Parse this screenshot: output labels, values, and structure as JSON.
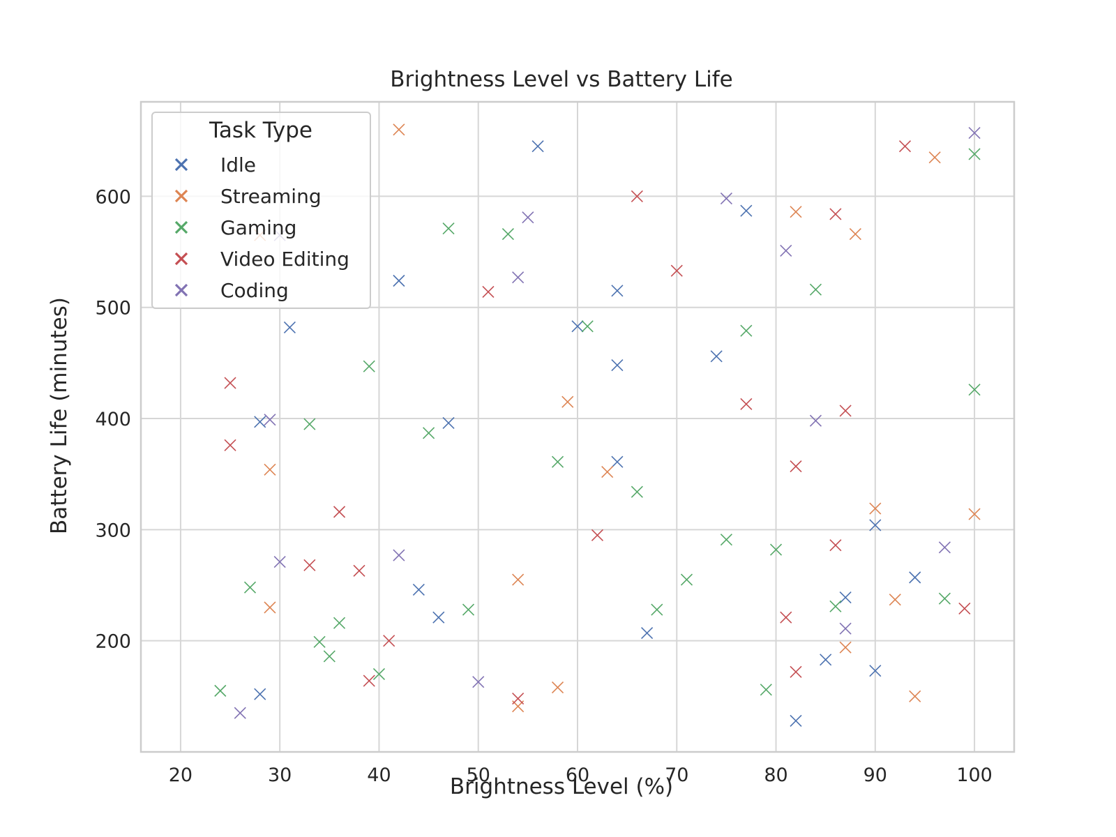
{
  "chart_data": {
    "type": "scatter",
    "title": "Brightness Level vs Battery Life",
    "xlabel": "Brightness Level (%)",
    "ylabel": "Battery Life (minutes)",
    "xlim": [
      16,
      104
    ],
    "ylim": [
      100,
      685
    ],
    "x_ticks": [
      20,
      30,
      40,
      50,
      60,
      70,
      80,
      90,
      100
    ],
    "y_ticks": [
      200,
      300,
      400,
      500,
      600
    ],
    "grid": true,
    "marker": "x",
    "legend": {
      "title": "Task Type",
      "placement": "top-left"
    },
    "series": [
      {
        "name": "Idle",
        "color": "#4c72b0",
        "points": [
          [
            56,
            645
          ],
          [
            77,
            587
          ],
          [
            42,
            524
          ],
          [
            64,
            515
          ],
          [
            31,
            482
          ],
          [
            60,
            483
          ],
          [
            64,
            448
          ],
          [
            74,
            456
          ],
          [
            28,
            397
          ],
          [
            47,
            396
          ],
          [
            64,
            361
          ],
          [
            90,
            304
          ],
          [
            94,
            257
          ],
          [
            87,
            239
          ],
          [
            44,
            246
          ],
          [
            46,
            221
          ],
          [
            67,
            207
          ],
          [
            85,
            183
          ],
          [
            90,
            173
          ],
          [
            28,
            152
          ],
          [
            82,
            128
          ]
        ]
      },
      {
        "name": "Streaming",
        "color": "#dd8452",
        "points": [
          [
            42,
            660
          ],
          [
            96,
            635
          ],
          [
            82,
            586
          ],
          [
            88,
            566
          ],
          [
            28,
            565
          ],
          [
            59,
            415
          ],
          [
            29,
            354
          ],
          [
            63,
            352
          ],
          [
            90,
            319
          ],
          [
            100,
            314
          ],
          [
            54,
            255
          ],
          [
            92,
            237
          ],
          [
            29,
            230
          ],
          [
            87,
            194
          ],
          [
            58,
            158
          ],
          [
            94,
            150
          ],
          [
            54,
            141
          ]
        ]
      },
      {
        "name": "Gaming",
        "color": "#55a868",
        "points": [
          [
            100,
            638
          ],
          [
            47,
            571
          ],
          [
            53,
            566
          ],
          [
            84,
            516
          ],
          [
            61,
            483
          ],
          [
            77,
            479
          ],
          [
            39,
            447
          ],
          [
            100,
            426
          ],
          [
            33,
            395
          ],
          [
            45,
            387
          ],
          [
            58,
            361
          ],
          [
            66,
            334
          ],
          [
            75,
            291
          ],
          [
            80,
            282
          ],
          [
            71,
            255
          ],
          [
            27,
            248
          ],
          [
            97,
            238
          ],
          [
            86,
            231
          ],
          [
            49,
            228
          ],
          [
            68,
            228
          ],
          [
            36,
            216
          ],
          [
            34,
            199
          ],
          [
            35,
            186
          ],
          [
            40,
            170
          ],
          [
            24,
            155
          ],
          [
            79,
            156
          ]
        ]
      },
      {
        "name": "Video Editing",
        "color": "#c44e52",
        "points": [
          [
            93,
            645
          ],
          [
            66,
            600
          ],
          [
            86,
            584
          ],
          [
            70,
            533
          ],
          [
            51,
            514
          ],
          [
            25,
            432
          ],
          [
            77,
            413
          ],
          [
            87,
            407
          ],
          [
            25,
            376
          ],
          [
            82,
            357
          ],
          [
            36,
            316
          ],
          [
            62,
            295
          ],
          [
            86,
            286
          ],
          [
            33,
            268
          ],
          [
            38,
            263
          ],
          [
            99,
            229
          ],
          [
            81,
            221
          ],
          [
            41,
            200
          ],
          [
            82,
            172
          ],
          [
            39,
            164
          ],
          [
            54,
            148
          ]
        ]
      },
      {
        "name": "Coding",
        "color": "#8172b3",
        "points": [
          [
            100,
            657
          ],
          [
            75,
            598
          ],
          [
            55,
            581
          ],
          [
            30,
            565
          ],
          [
            81,
            551
          ],
          [
            54,
            527
          ],
          [
            29,
            399
          ],
          [
            84,
            398
          ],
          [
            97,
            284
          ],
          [
            30,
            271
          ],
          [
            42,
            277
          ],
          [
            87,
            211
          ],
          [
            50,
            163
          ],
          [
            26,
            135
          ]
        ]
      }
    ]
  }
}
